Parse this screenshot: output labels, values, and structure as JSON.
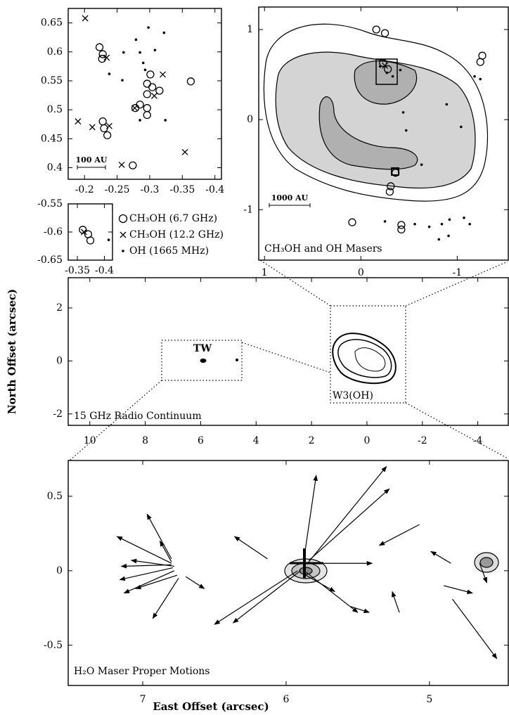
{
  "chart_data": [
    {
      "type": "scatter",
      "scale_label": "100 AU",
      "xlim": [
        -0.175,
        -0.41
      ],
      "ylim": [
        0.38,
        0.675
      ],
      "xticks": [
        -0.2,
        -0.25,
        -0.3,
        -0.35,
        -0.4
      ],
      "yticks": [
        0.4,
        0.45,
        0.5,
        0.55,
        0.6,
        0.65
      ],
      "series": [
        {
          "marker": "circle",
          "x": [
            -0.223,
            -0.228,
            -0.227,
            -0.363,
            -0.301,
            -0.296,
            -0.304,
            -0.315,
            -0.296,
            -0.285,
            -0.296,
            -0.296,
            -0.228,
            -0.23,
            -0.235,
            -0.274,
            -0.278
          ],
          "y": [
            0.608,
            0.596,
            0.588,
            0.549,
            0.561,
            0.545,
            0.539,
            0.533,
            0.527,
            0.509,
            0.503,
            0.491,
            0.48,
            0.468,
            0.456,
            0.404,
            0.503
          ]
        },
        {
          "marker": "cross",
          "x": [
            -0.201,
            -0.234,
            -0.19,
            -0.212,
            -0.238,
            -0.257,
            -0.354,
            -0.277,
            -0.32,
            -0.307
          ],
          "y": [
            0.658,
            0.59,
            0.48,
            0.47,
            0.472,
            0.405,
            0.427,
            0.503,
            0.561,
            0.524
          ]
        },
        {
          "marker": "dot",
          "x": [
            -0.298,
            -0.322,
            -0.279,
            -0.26,
            -0.238,
            -0.258,
            -0.285,
            -0.29,
            -0.293,
            -0.308,
            -0.324,
            -0.285
          ],
          "y": [
            0.642,
            0.633,
            0.621,
            0.599,
            0.562,
            0.551,
            0.599,
            0.581,
            0.569,
            0.603,
            0.482,
            0.482
          ]
        }
      ]
    },
    {
      "type": "scatter",
      "xlim": [
        -0.333,
        -0.415
      ],
      "ylim": [
        -0.65,
        -0.55
      ],
      "xticks": [
        -0.35,
        -0.4
      ],
      "yticks": [
        -0.55,
        -0.6,
        -0.65
      ],
      "series": [
        {
          "name": "CH₃OH (6.7 GHz)",
          "marker": "circle",
          "x": [
            -0.36,
            -0.37,
            -0.374
          ],
          "y": [
            -0.596,
            -0.604,
            -0.615
          ]
        },
        {
          "name": "CH₃OH (12.2 GHz)",
          "marker": "cross",
          "x": [
            -0.362
          ],
          "y": [
            -0.6
          ]
        },
        {
          "name": "OH (1665 MHz)",
          "marker": "dot",
          "x": [
            -0.408
          ],
          "y": [
            -0.614
          ]
        }
      ]
    },
    {
      "type": "scatter",
      "title": "CH₃OH and OH Masers",
      "scale_label": "1000 AU",
      "xlim": [
        1.06,
        -1.53
      ],
      "ylim": [
        -1.56,
        1.25
      ],
      "xticks": [
        1,
        0,
        -1
      ],
      "yticks": [
        -1,
        0,
        1
      ],
      "series": [
        {
          "marker": "circle",
          "x": [
            -0.16,
            -0.25,
            -1.26,
            -1.24,
            -0.23,
            -0.28,
            -0.31,
            -0.3,
            0.09,
            -0.42,
            -0.42,
            -0.36
          ],
          "y": [
            1.0,
            0.96,
            0.71,
            0.64,
            0.63,
            0.56,
            -0.74,
            -0.8,
            -1.14,
            -1.17,
            -1.22,
            -0.59
          ]
        },
        {
          "marker": "cross",
          "x": [
            -0.25
          ],
          "y": [
            0.6
          ]
        },
        {
          "marker": "dot",
          "x": [
            -0.2,
            -0.27,
            -0.33,
            -0.41,
            -0.44,
            -0.47,
            -1.04,
            -1.18,
            -1.24,
            -0.25,
            -0.56,
            -0.71,
            -0.84,
            -0.92,
            -1.07,
            -1.13,
            -0.81,
            -0.91,
            -0.63,
            -0.89
          ],
          "y": [
            0.59,
            0.52,
            0.48,
            0.55,
            0.08,
            -0.12,
            -0.08,
            0.48,
            0.45,
            -1.13,
            -1.16,
            -1.19,
            -1.16,
            -1.11,
            -1.09,
            -1.16,
            -1.33,
            -1.29,
            -0.5,
            0.17
          ]
        }
      ]
    },
    {
      "type": "contour",
      "title": "15 GHz Radio Continuum",
      "ylabel": "North Offset (arcsec)",
      "annotations": [
        "TW",
        "W3(OH)"
      ],
      "xlim": [
        10.78,
        -5.1
      ],
      "ylim": [
        -2.43,
        3.14
      ],
      "xticks": [
        10,
        8,
        6,
        4,
        2,
        0,
        -2,
        -4
      ],
      "yticks": [
        -2,
        0,
        2
      ]
    },
    {
      "type": "quiver",
      "title": "H₂O Maser Proper Motions",
      "xlabel": "East Offset (arcsec)",
      "xlim": [
        7.52,
        4.45
      ],
      "ylim": [
        -0.77,
        0.74
      ],
      "xticks": [
        7,
        6,
        5
      ],
      "yticks": [
        -0.5,
        0,
        0.5
      ],
      "x": [
        6.8,
        6.8,
        6.79,
        6.78,
        6.75,
        6.8,
        6.8,
        6.7,
        6.76,
        6.78,
        5.92,
        5.9,
        5.88,
        5.85,
        5.84,
        5.86,
        5.86,
        5.88,
        6.13,
        5.07,
        4.84,
        4.9,
        4.65,
        5.21,
        4.85,
        5.55
      ],
      "y": [
        0.05,
        0.04,
        0.02,
        0.0,
        -0.05,
        0.08,
        0.06,
        -0.04,
        -0.03,
        0.03,
        0.0,
        0.0,
        0.05,
        0.05,
        0.07,
        0.05,
        -0.01,
        -0.02,
        0.08,
        0.31,
        -0.19,
        -0.1,
        0.05,
        -0.28,
        0.05,
        -0.24
      ],
      "x_end": [
        7.18,
        7.15,
        7.16,
        7.13,
        6.93,
        6.97,
        6.88,
        6.57,
        7.05,
        7.08,
        6.5,
        6.37,
        5.79,
        5.3,
        5.28,
        5.4,
        5.5,
        5.66,
        6.36,
        5.35,
        4.53,
        4.7,
        4.6,
        5.26,
        4.99,
        5.42
      ],
      "y_end": [
        0.23,
        0.03,
        -0.06,
        -0.15,
        -0.32,
        0.38,
        0.2,
        -0.12,
        -0.12,
        0.07,
        -0.36,
        -0.35,
        0.64,
        0.7,
        0.55,
        0.05,
        -0.28,
        -0.14,
        0.23,
        0.17,
        -0.59,
        -0.15,
        -0.08,
        -0.14,
        0.13,
        -0.28
      ]
    }
  ]
}
